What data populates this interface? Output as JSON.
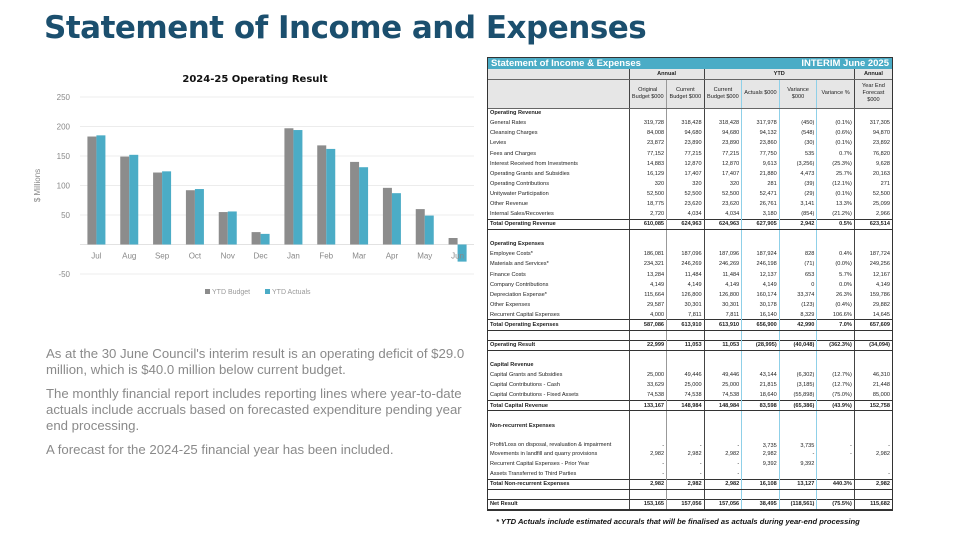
{
  "slide_title": "Statement of Income and Expenses",
  "notes": [
    "As at the 30 June Council's interim result is an operating deficit of $29.0 million, which is $40.0 million below current budget.",
    "The monthly financial report includes reporting lines where year-to-date actuals include accruals based on forecasted expenditure pending year end processing.",
    "A forecast for the 2024-25 financial year has been included."
  ],
  "chart_data": {
    "type": "bar",
    "title": "2024-25 Operating Result",
    "ylabel": "$ Millions",
    "xlabel": "",
    "categories": [
      "Jul",
      "Aug",
      "Sep",
      "Oct",
      "Nov",
      "Dec",
      "Jan",
      "Feb",
      "Mar",
      "Apr",
      "May",
      "Jun"
    ],
    "series": [
      {
        "name": "YTD Budget",
        "color": "#8c8c8c",
        "values": [
          183,
          149,
          122,
          92,
          55,
          21,
          197,
          168,
          140,
          96,
          60,
          11
        ]
      },
      {
        "name": "YTD Actuals",
        "color": "#4bacc6",
        "values": [
          185,
          152,
          124,
          94,
          56,
          18,
          194,
          162,
          131,
          87,
          49,
          -29
        ]
      }
    ],
    "ylim": [
      -50,
      250
    ],
    "yticks": [
      -50,
      50,
      100,
      150,
      200,
      250
    ],
    "grid": true,
    "legend": "bottom"
  },
  "table": {
    "title": "Statement of Income & Expenses",
    "period": "INTERIM June 2025",
    "groups": [
      "Annual",
      "YTD",
      "Annual"
    ],
    "headers": [
      "Original Budget $000",
      "Current Budget $000",
      "Current Budget $000",
      "Actuals $000",
      "Variance $000",
      "Variance %",
      "Year End Forecast $000"
    ],
    "rows": [
      {
        "type": "heading",
        "label": "Operating Revenue",
        "values": [
          "",
          "",
          "",
          "",
          "",
          "",
          ""
        ]
      },
      {
        "type": "row",
        "label": "General Rates",
        "values": [
          "319,728",
          "318,428",
          "318,428",
          "317,978",
          "(450)",
          "(0.1%)",
          "317,305"
        ]
      },
      {
        "type": "row",
        "label": "Cleansing Charges",
        "values": [
          "84,008",
          "94,680",
          "94,680",
          "94,132",
          "(548)",
          "(0.6%)",
          "94,870"
        ]
      },
      {
        "type": "row",
        "label": "Levies",
        "values": [
          "23,872",
          "23,890",
          "23,890",
          "23,860",
          "(30)",
          "(0.1%)",
          "23,892"
        ]
      },
      {
        "type": "row",
        "label": "Fees and Charges",
        "values": [
          "77,152",
          "77,215",
          "77,215",
          "77,750",
          "535",
          "0.7%",
          "76,820"
        ]
      },
      {
        "type": "row",
        "label": "Interest Received from Investments",
        "values": [
          "14,883",
          "12,870",
          "12,870",
          "9,613",
          "(3,256)",
          "(25.3%)",
          "9,628"
        ]
      },
      {
        "type": "row",
        "label": "Operating Grants and Subsidies",
        "values": [
          "16,129",
          "17,407",
          "17,407",
          "21,880",
          "4,473",
          "25.7%",
          "20,163"
        ]
      },
      {
        "type": "row",
        "label": "Operating Contributions",
        "values": [
          "320",
          "320",
          "320",
          "281",
          "(39)",
          "(12.1%)",
          "271"
        ]
      },
      {
        "type": "row",
        "label": "Unitywater Participation",
        "values": [
          "52,500",
          "52,500",
          "52,500",
          "52,471",
          "(29)",
          "(0.1%)",
          "52,500"
        ]
      },
      {
        "type": "row",
        "label": "Other Revenue",
        "values": [
          "18,775",
          "23,620",
          "23,620",
          "26,761",
          "3,141",
          "13.3%",
          "25,099"
        ]
      },
      {
        "type": "row",
        "label": "Internal Sales/Recoveries",
        "values": [
          "2,720",
          "4,034",
          "4,034",
          "3,180",
          "(854)",
          "(21.2%)",
          "2,966"
        ]
      },
      {
        "type": "total",
        "label": "Total Operating Revenue",
        "values": [
          "610,085",
          "624,963",
          "624,963",
          "627,905",
          "2,942",
          "0.5%",
          "623,514"
        ]
      },
      {
        "type": "blank",
        "label": "",
        "values": [
          "",
          "",
          "",
          "",
          "",
          "",
          ""
        ]
      },
      {
        "type": "heading",
        "label": "Operating Expenses",
        "values": [
          "",
          "",
          "",
          "",
          "",
          "",
          ""
        ]
      },
      {
        "type": "row",
        "label": "Employee Costs*",
        "values": [
          "186,081",
          "187,096",
          "187,096",
          "187,924",
          "828",
          "0.4%",
          "187,724"
        ]
      },
      {
        "type": "row",
        "label": "Materials and Services*",
        "values": [
          "234,321",
          "246,269",
          "246,269",
          "246,198",
          "(71)",
          "(0.0%)",
          "249,256"
        ]
      },
      {
        "type": "row",
        "label": "Finance Costs",
        "values": [
          "13,284",
          "11,484",
          "11,484",
          "12,137",
          "653",
          "5.7%",
          "12,167"
        ]
      },
      {
        "type": "row",
        "label": "Company Contributions",
        "values": [
          "4,149",
          "4,149",
          "4,149",
          "4,149",
          "0",
          "0.0%",
          "4,149"
        ]
      },
      {
        "type": "row",
        "label": "Depreciation Expense*",
        "values": [
          "115,664",
          "126,800",
          "126,800",
          "160,174",
          "33,374",
          "26.3%",
          "159,786"
        ]
      },
      {
        "type": "row",
        "label": "Other Expenses",
        "values": [
          "29,587",
          "30,301",
          "30,301",
          "30,178",
          "(123)",
          "(0.4%)",
          "29,882"
        ]
      },
      {
        "type": "row",
        "label": "Recurrent Capital Expenses",
        "values": [
          "4,000",
          "7,811",
          "7,811",
          "16,140",
          "8,329",
          "106.6%",
          "14,645"
        ]
      },
      {
        "type": "total",
        "label": "Total Operating Expenses",
        "values": [
          "587,086",
          "613,910",
          "613,910",
          "656,900",
          "42,990",
          "7.0%",
          "657,609"
        ]
      },
      {
        "type": "blank",
        "label": "",
        "values": [
          "",
          "",
          "",
          "",
          "",
          "",
          ""
        ]
      },
      {
        "type": "total",
        "label": "Operating Result",
        "values": [
          "22,999",
          "11,053",
          "11,053",
          "(28,995)",
          "(40,048)",
          "(362.3%)",
          "(34,094)"
        ]
      },
      {
        "type": "blank",
        "label": "",
        "values": [
          "",
          "",
          "",
          "",
          "",
          "",
          ""
        ]
      },
      {
        "type": "heading",
        "label": "Capital Revenue",
        "values": [
          "",
          "",
          "",
          "",
          "",
          "",
          ""
        ]
      },
      {
        "type": "row",
        "label": "Capital Grants and Subsidies",
        "values": [
          "25,000",
          "49,446",
          "49,446",
          "43,144",
          "(6,302)",
          "(12.7%)",
          "46,310"
        ]
      },
      {
        "type": "row",
        "label": "Capital Contributions - Cash",
        "values": [
          "33,629",
          "25,000",
          "25,000",
          "21,815",
          "(3,185)",
          "(12.7%)",
          "21,448"
        ]
      },
      {
        "type": "row",
        "label": "Capital Contributions - Fixed Assets",
        "values": [
          "74,538",
          "74,538",
          "74,538",
          "18,640",
          "(55,898)",
          "(75.0%)",
          "85,000"
        ]
      },
      {
        "type": "total",
        "label": "Total Capital Revenue",
        "values": [
          "133,167",
          "148,984",
          "148,984",
          "83,598",
          "(65,386)",
          "(43.9%)",
          "152,758"
        ]
      },
      {
        "type": "blank",
        "label": "",
        "values": [
          "",
          "",
          "",
          "",
          "",
          "",
          ""
        ]
      },
      {
        "type": "heading",
        "label": "Non-recurrent Expenses",
        "values": [
          "",
          "",
          "",
          "",
          "",
          "",
          ""
        ]
      },
      {
        "type": "two",
        "label": "Profit/Loss on disposal, revaluation & impairment",
        "values": [
          "-",
          "-",
          "-",
          "3,735",
          "3,735",
          "-",
          "-"
        ]
      },
      {
        "type": "row",
        "label": "Movements in landfill and quarry provisions",
        "values": [
          "2,982",
          "2,982",
          "2,982",
          "2,982",
          "-",
          "-",
          "2,982"
        ]
      },
      {
        "type": "row",
        "label": "Recurrent Capital Expenses - Prior Year",
        "values": [
          "-",
          "-",
          "-",
          "9,392",
          "9,392",
          "",
          ""
        ]
      },
      {
        "type": "row",
        "label": "Assets Transferred to Third Parties",
        "values": [
          "-",
          "-",
          "-",
          "",
          "",
          "",
          "-"
        ]
      },
      {
        "type": "total",
        "label": "Total Non-recurrent Expenses",
        "values": [
          "2,982",
          "2,982",
          "2,982",
          "16,108",
          "13,127",
          "440.3%",
          "2,982"
        ]
      },
      {
        "type": "blank",
        "label": "",
        "values": [
          "",
          "",
          "",
          "",
          "",
          "",
          ""
        ]
      },
      {
        "type": "total",
        "label": "Net Result",
        "values": [
          "153,165",
          "157,056",
          "157,056",
          "38,495",
          "(118,561)",
          "(75.5%)",
          "115,682"
        ]
      }
    ],
    "footnote": "* YTD Actuals include estimated accurals that will be finalised as actuals during year-end processing"
  }
}
